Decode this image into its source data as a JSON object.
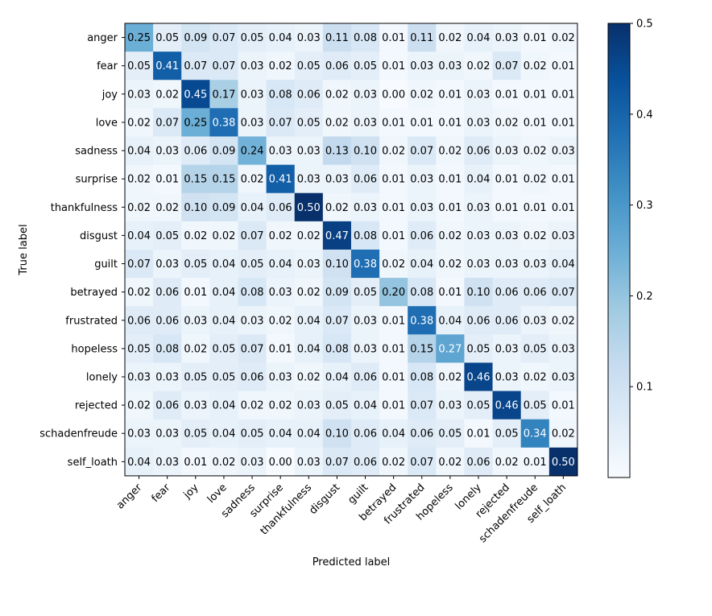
{
  "chart_data": {
    "type": "heatmap",
    "title": "",
    "xlabel": "Predicted label",
    "ylabel": "True label",
    "row_labels": [
      "anger",
      "fear",
      "joy",
      "love",
      "sadness",
      "surprise",
      "thankfulness",
      "disgust",
      "guilt",
      "betrayed",
      "frustrated",
      "hopeless",
      "lonely",
      "rejected",
      "schadenfreude",
      "self_loath"
    ],
    "col_labels": [
      "anger",
      "fear",
      "joy",
      "love",
      "sadness",
      "surprise",
      "thankfulness",
      "disgust",
      "guilt",
      "betrayed",
      "frustrated",
      "hopeless",
      "lonely",
      "rejected",
      "schadenfreude",
      "self_loath"
    ],
    "matrix": [
      [
        0.25,
        0.05,
        0.09,
        0.07,
        0.05,
        0.04,
        0.03,
        0.11,
        0.08,
        0.01,
        0.11,
        0.02,
        0.04,
        0.03,
        0.01,
        0.02
      ],
      [
        0.05,
        0.41,
        0.07,
        0.07,
        0.03,
        0.02,
        0.05,
        0.06,
        0.05,
        0.01,
        0.03,
        0.03,
        0.02,
        0.07,
        0.02,
        0.01
      ],
      [
        0.03,
        0.02,
        0.45,
        0.17,
        0.03,
        0.08,
        0.06,
        0.02,
        0.03,
        0.0,
        0.02,
        0.01,
        0.03,
        0.01,
        0.01,
        0.01
      ],
      [
        0.02,
        0.07,
        0.25,
        0.38,
        0.03,
        0.07,
        0.05,
        0.02,
        0.03,
        0.01,
        0.01,
        0.01,
        0.03,
        0.02,
        0.01,
        0.01
      ],
      [
        0.04,
        0.03,
        0.06,
        0.09,
        0.24,
        0.03,
        0.03,
        0.13,
        0.1,
        0.02,
        0.07,
        0.02,
        0.06,
        0.03,
        0.02,
        0.03
      ],
      [
        0.02,
        0.01,
        0.15,
        0.15,
        0.02,
        0.41,
        0.03,
        0.03,
        0.06,
        0.01,
        0.03,
        0.01,
        0.04,
        0.01,
        0.02,
        0.01
      ],
      [
        0.02,
        0.02,
        0.1,
        0.09,
        0.04,
        0.06,
        0.5,
        0.02,
        0.03,
        0.01,
        0.03,
        0.01,
        0.03,
        0.01,
        0.01,
        0.01
      ],
      [
        0.04,
        0.05,
        0.02,
        0.02,
        0.07,
        0.02,
        0.02,
        0.47,
        0.08,
        0.01,
        0.06,
        0.02,
        0.03,
        0.03,
        0.02,
        0.03
      ],
      [
        0.07,
        0.03,
        0.05,
        0.04,
        0.05,
        0.04,
        0.03,
        0.1,
        0.38,
        0.02,
        0.04,
        0.02,
        0.03,
        0.03,
        0.03,
        0.04
      ],
      [
        0.02,
        0.06,
        0.01,
        0.04,
        0.08,
        0.03,
        0.02,
        0.09,
        0.05,
        0.2,
        0.08,
        0.01,
        0.1,
        0.06,
        0.06,
        0.07
      ],
      [
        0.06,
        0.06,
        0.03,
        0.04,
        0.03,
        0.02,
        0.04,
        0.07,
        0.03,
        0.01,
        0.38,
        0.04,
        0.06,
        0.06,
        0.03,
        0.02
      ],
      [
        0.05,
        0.08,
        0.02,
        0.05,
        0.07,
        0.01,
        0.04,
        0.08,
        0.03,
        0.01,
        0.15,
        0.27,
        0.05,
        0.03,
        0.05,
        0.03
      ],
      [
        0.03,
        0.03,
        0.05,
        0.05,
        0.06,
        0.03,
        0.02,
        0.04,
        0.06,
        0.01,
        0.08,
        0.02,
        0.46,
        0.03,
        0.02,
        0.03
      ],
      [
        0.02,
        0.06,
        0.03,
        0.04,
        0.02,
        0.02,
        0.03,
        0.05,
        0.04,
        0.01,
        0.07,
        0.03,
        0.05,
        0.46,
        0.05,
        0.01
      ],
      [
        0.03,
        0.03,
        0.05,
        0.04,
        0.05,
        0.04,
        0.04,
        0.1,
        0.06,
        0.04,
        0.06,
        0.05,
        0.01,
        0.05,
        0.34,
        0.02
      ],
      [
        0.04,
        0.03,
        0.01,
        0.02,
        0.03,
        0.0,
        0.03,
        0.07,
        0.06,
        0.02,
        0.07,
        0.02,
        0.06,
        0.02,
        0.01,
        0.5
      ]
    ],
    "colormap": "Blues",
    "vmin": 0.0,
    "vmax": 0.5,
    "colorbar_ticks": [
      0.1,
      0.2,
      0.3,
      0.4,
      0.5
    ],
    "colorbar_tick_labels": [
      "0.1",
      "0.2",
      "0.3",
      "0.4",
      "0.5"
    ],
    "annotation_threshold": 0.25,
    "xtick_rotation_deg": 45,
    "grid": false
  }
}
